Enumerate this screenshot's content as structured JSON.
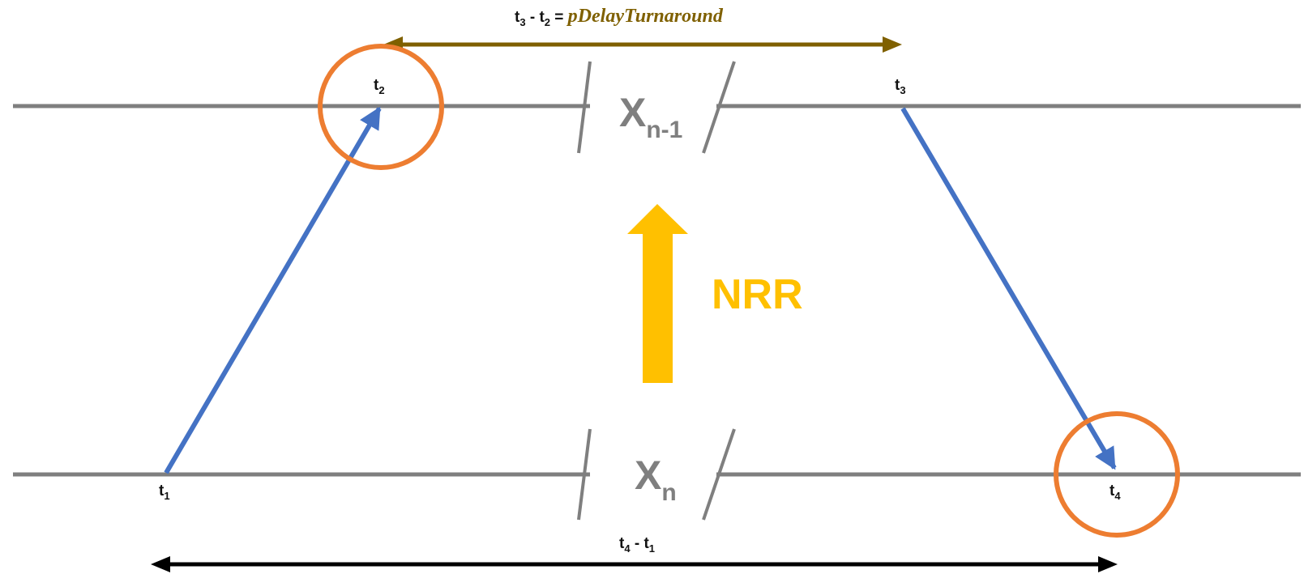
{
  "timeline_upper": {
    "label": "X",
    "sub": "n-1"
  },
  "timeline_lower": {
    "label": "X",
    "sub": "n"
  },
  "timestamps": {
    "t1": {
      "base": "t",
      "sub": "1"
    },
    "t2": {
      "base": "t",
      "sub": "2"
    },
    "t3": {
      "base": "t",
      "sub": "3"
    },
    "t4": {
      "base": "t",
      "sub": "4"
    }
  },
  "turnaround": {
    "a_base": "t",
    "a_sub": "3",
    "op": " - ",
    "b_base": "t",
    "b_sub": "2",
    "eq": " = ",
    "name": "pDelayTurnaround"
  },
  "roundtrip": {
    "a_base": "t",
    "a_sub": "4",
    "op": " - ",
    "b_base": "t",
    "b_sub": "1"
  },
  "nrr": {
    "label": "NRR"
  },
  "colors": {
    "timeline": "#7f7f7f",
    "message": "#4472c4",
    "highlight": "#ed7d31",
    "turnaround": "#7f6000",
    "nrr": "#ffc000",
    "roundtrip": "#000000"
  }
}
